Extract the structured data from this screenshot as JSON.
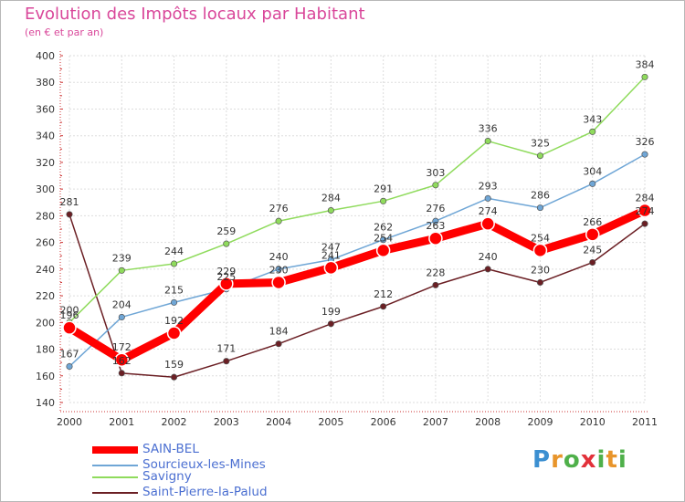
{
  "title": "Evolution des Impôts locaux par Habitant",
  "subtitle": "(en € et par an)",
  "brand": {
    "letters": [
      "P",
      "r",
      "o",
      "x",
      "i",
      "t",
      "i"
    ],
    "colors": [
      "#3b8fd1",
      "#e8952b",
      "#4fb04a",
      "#e2313a",
      "#4fb04a",
      "#e8952b",
      "#4fb04a"
    ]
  },
  "chart_data": {
    "type": "line",
    "title": "Evolution des Impôts locaux par Habitant",
    "subtitle": "(en € et par an)",
    "xlabel": "",
    "ylabel": "",
    "categories": [
      "2000",
      "2001",
      "2002",
      "2003",
      "2004",
      "2005",
      "2006",
      "2007",
      "2008",
      "2009",
      "2010",
      "2011"
    ],
    "ylim": [
      140,
      400
    ],
    "yticks": [
      140,
      160,
      180,
      200,
      220,
      240,
      260,
      280,
      300,
      320,
      340,
      360,
      380,
      400
    ],
    "grid": true,
    "legend_position": "bottom-left",
    "series": [
      {
        "name": "Saint-Pierre-la-Palud",
        "color": "#6b1f24",
        "values": [
          281,
          162,
          159,
          171,
          184,
          199,
          212,
          228,
          240,
          230,
          245,
          274
        ],
        "labels": [
          "281",
          "162",
          "159",
          "171",
          "184",
          "199",
          "212",
          "228",
          "240",
          "230",
          "245",
          "274"
        ]
      },
      {
        "name": "Savigny",
        "color": "#8fdb5c",
        "values": [
          200,
          239,
          244,
          259,
          276,
          284,
          291,
          303,
          336,
          325,
          343,
          384
        ],
        "labels": [
          "200",
          "239",
          "244",
          "259",
          "276",
          "284",
          "291",
          "303",
          "336",
          "325",
          "343",
          "384"
        ]
      },
      {
        "name": "Sourcieux-les-Mines",
        "color": "#6fa6d6",
        "values": [
          167,
          204,
          215,
          225,
          240,
          247,
          262,
          276,
          293,
          286,
          304,
          326
        ],
        "labels": [
          "167",
          "204",
          "215",
          "225",
          "240",
          "247",
          "262",
          "276",
          "293",
          "286",
          "304",
          "326"
        ]
      },
      {
        "name": "SAIN-BEL",
        "color": "#ff0000",
        "values": [
          196,
          172,
          192,
          229,
          230,
          241,
          254,
          263,
          274,
          254,
          266,
          284
        ],
        "labels": [
          "196",
          "172",
          "192",
          "229",
          "230",
          "241",
          "254",
          "263",
          "274",
          "254",
          "266",
          "284"
        ]
      }
    ],
    "legend": [
      {
        "name": "SAIN-BEL",
        "color": "#ff0000"
      },
      {
        "name": "Sourcieux-les-Mines",
        "color": "#6fa6d6"
      },
      {
        "name": "Savigny",
        "color": "#8fdb5c"
      },
      {
        "name": "Saint-Pierre-la-Palud",
        "color": "#6b1f24"
      }
    ]
  }
}
